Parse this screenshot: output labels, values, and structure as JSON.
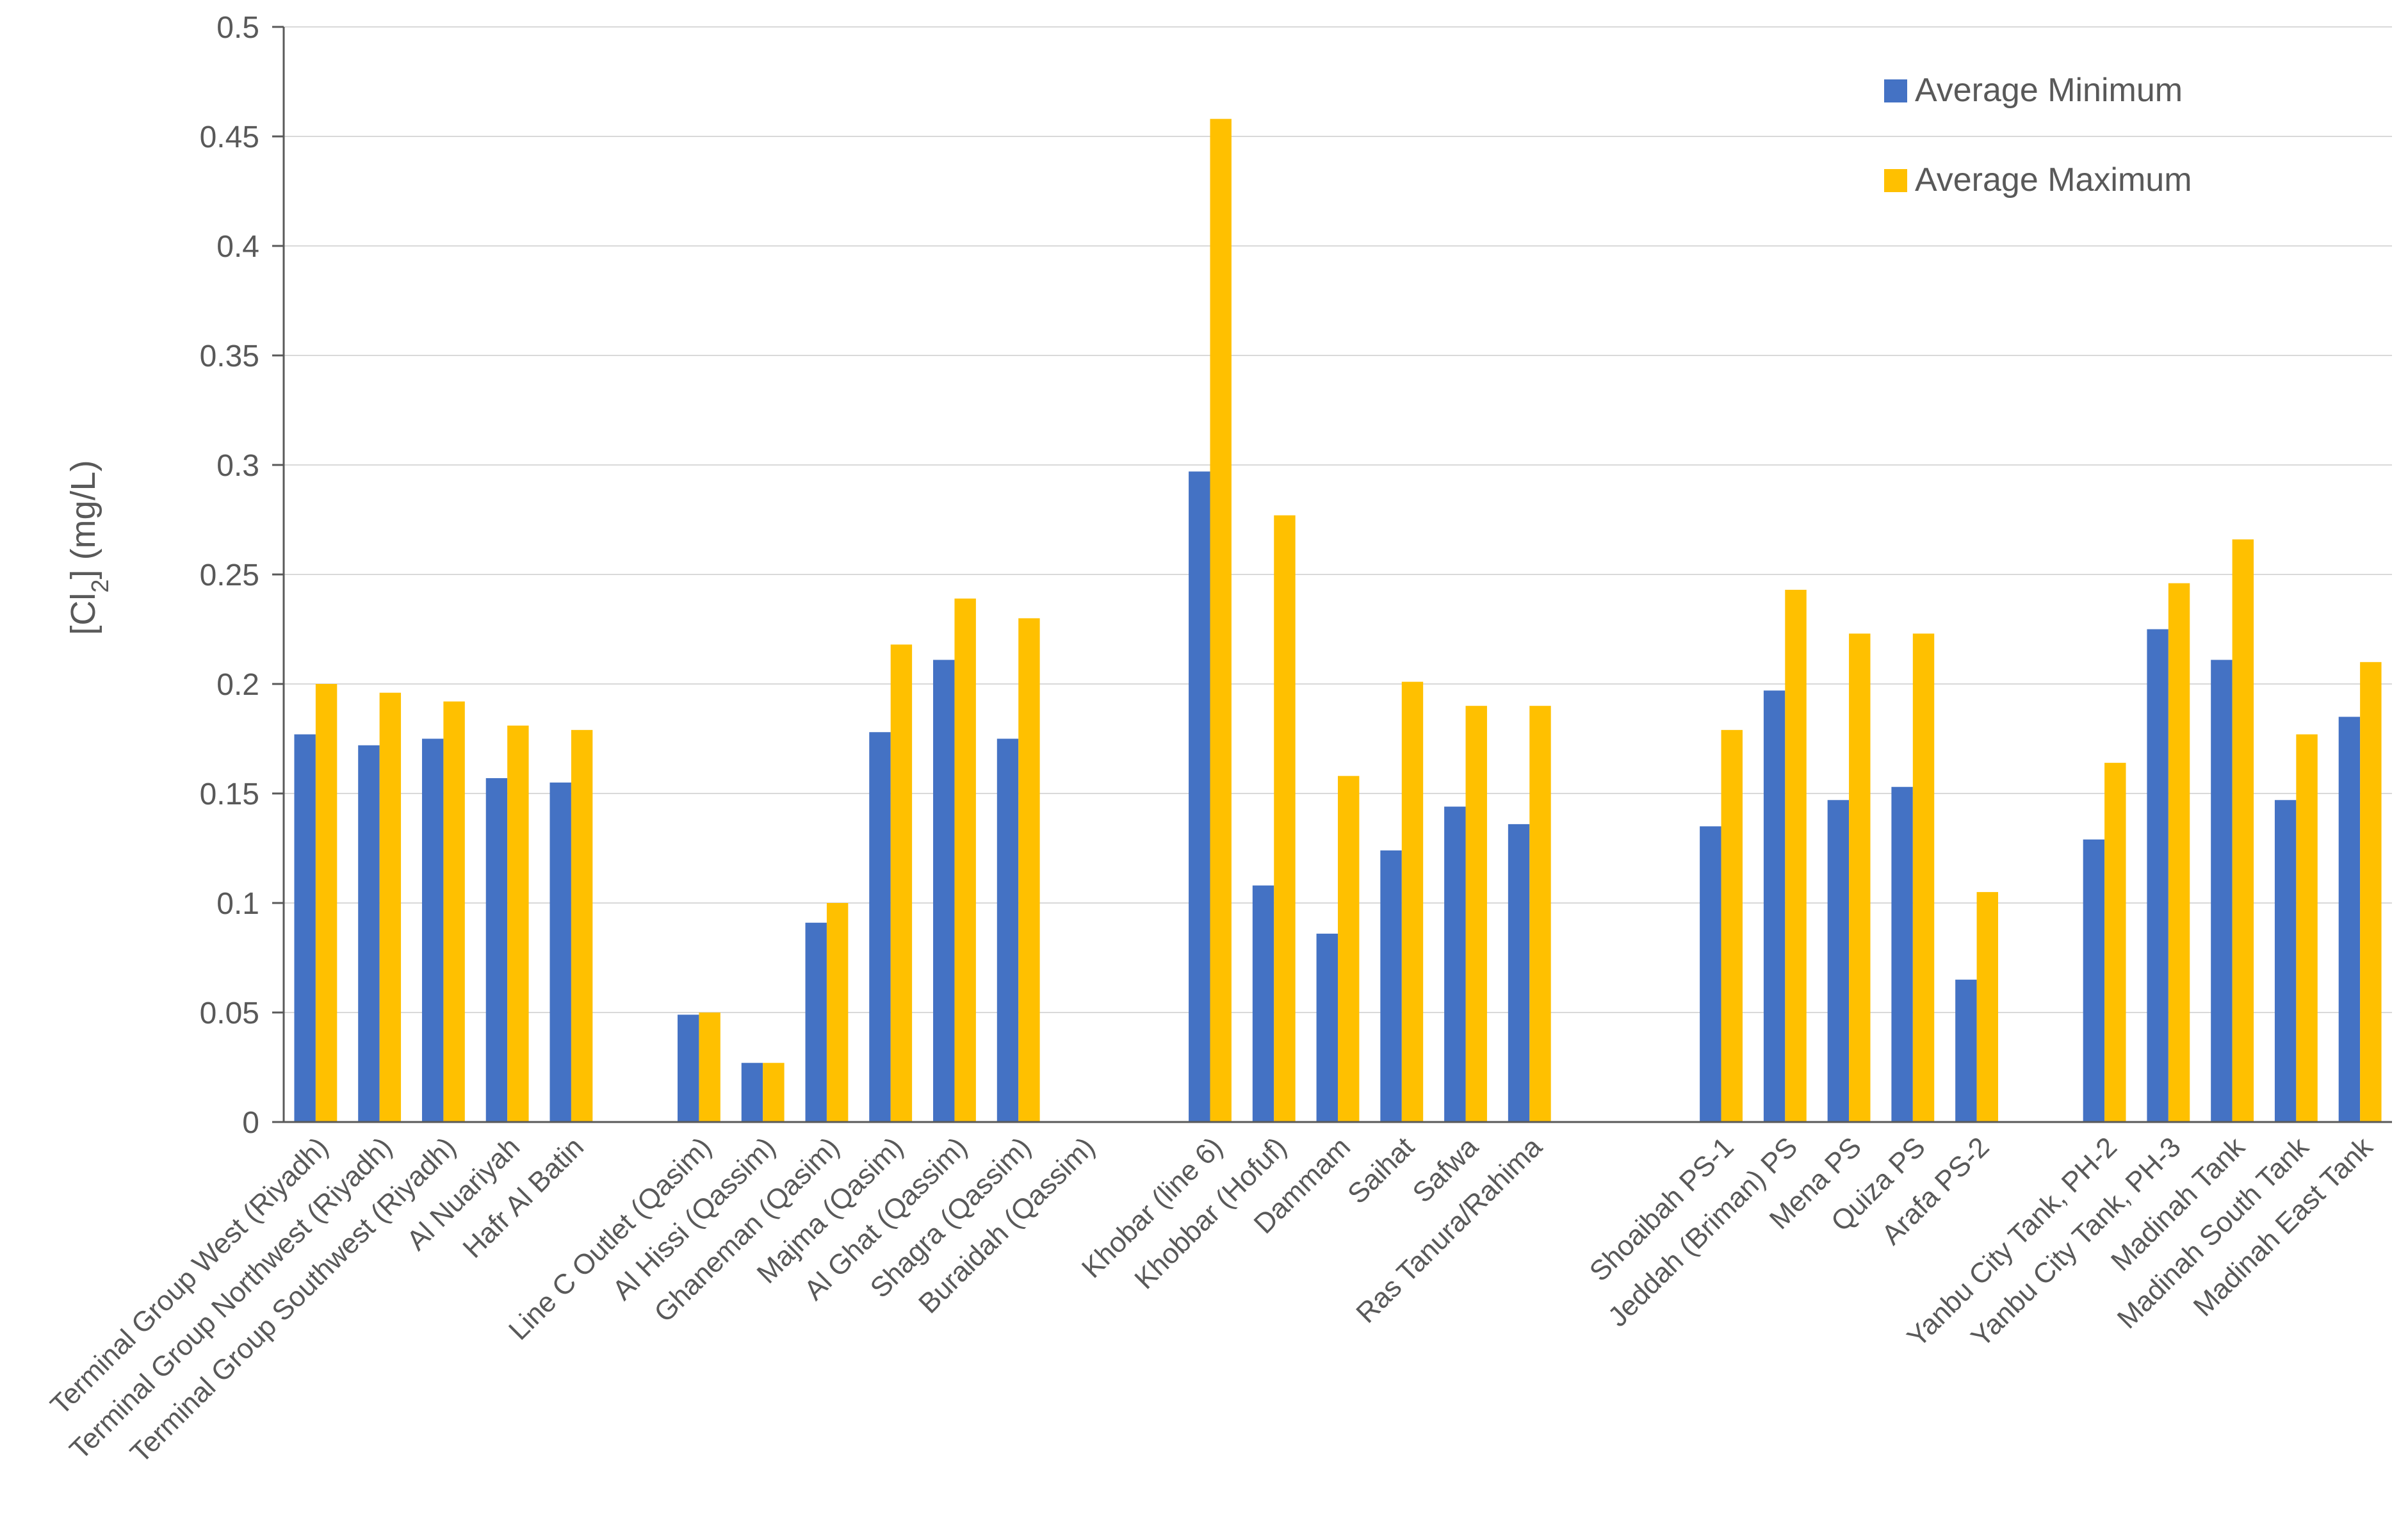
{
  "chart_data": {
    "type": "bar",
    "title": "",
    "xlabel": "",
    "ylabel": {
      "prefix": "[Cl",
      "subscript": "2",
      "suffix": "]  (mg/L)"
    },
    "ylim": [
      0,
      0.5
    ],
    "yticks": [
      "0",
      "0.05",
      "0.1",
      "0.15",
      "0.2",
      "0.25",
      "0.3",
      "0.35",
      "0.4",
      "0.45",
      "0.5"
    ],
    "grid": true,
    "legend_position": "top-right",
    "colors": {
      "Average Minimum": "#4472C4",
      "Average Maximum": "#FFC000"
    },
    "categories": [
      "Terminal Group West (Riyadh)",
      "Terminal Group Northwest (Riyadh)",
      "Terminal Group Southwest (Riyadh)",
      "Al Nuariyah",
      "Hafr Al Batin",
      "",
      "Line C Outlet (Qasim)",
      "Al Hissi (Qassim)",
      "Ghaneman (Qasim)",
      "Majma (Qasim)",
      "Al Ghat (Qassim)",
      "Shagra (Qassim)",
      "Buraidah (Qassim)",
      "",
      "Khobar (line 6)",
      "Khobbar (Hofuf)",
      "Dammam",
      "Saihat",
      "Safwa",
      "Ras Tanura/Rahima",
      "",
      "",
      "Shoaibah PS-1",
      "Jeddah (Briman) PS",
      "Mena PS",
      "Quiza PS",
      "Arafa PS-2",
      "",
      "Yanbu City Tank, PH-2",
      "Yanbu City Tank, PH-3",
      "Madinah Tank",
      "Madinah South Tank",
      "Madinah East Tank"
    ],
    "series": [
      {
        "name": "Average Minimum",
        "values": [
          0.177,
          0.172,
          0.175,
          0.157,
          0.155,
          null,
          0.049,
          0.027,
          0.091,
          0.178,
          0.211,
          0.175,
          null,
          null,
          0.297,
          0.108,
          0.086,
          0.124,
          0.144,
          0.136,
          null,
          null,
          0.135,
          0.197,
          0.147,
          0.153,
          0.065,
          null,
          0.129,
          0.225,
          0.211,
          0.147,
          0.185
        ]
      },
      {
        "name": "Average Maximum",
        "values": [
          0.2,
          0.196,
          0.192,
          0.181,
          0.179,
          null,
          0.05,
          0.027,
          0.1,
          0.218,
          0.239,
          0.23,
          null,
          null,
          0.458,
          0.277,
          0.158,
          0.201,
          0.19,
          0.19,
          null,
          null,
          0.179,
          0.243,
          0.223,
          0.223,
          0.105,
          null,
          0.164,
          0.246,
          0.266,
          0.177,
          0.21
        ]
      }
    ]
  }
}
